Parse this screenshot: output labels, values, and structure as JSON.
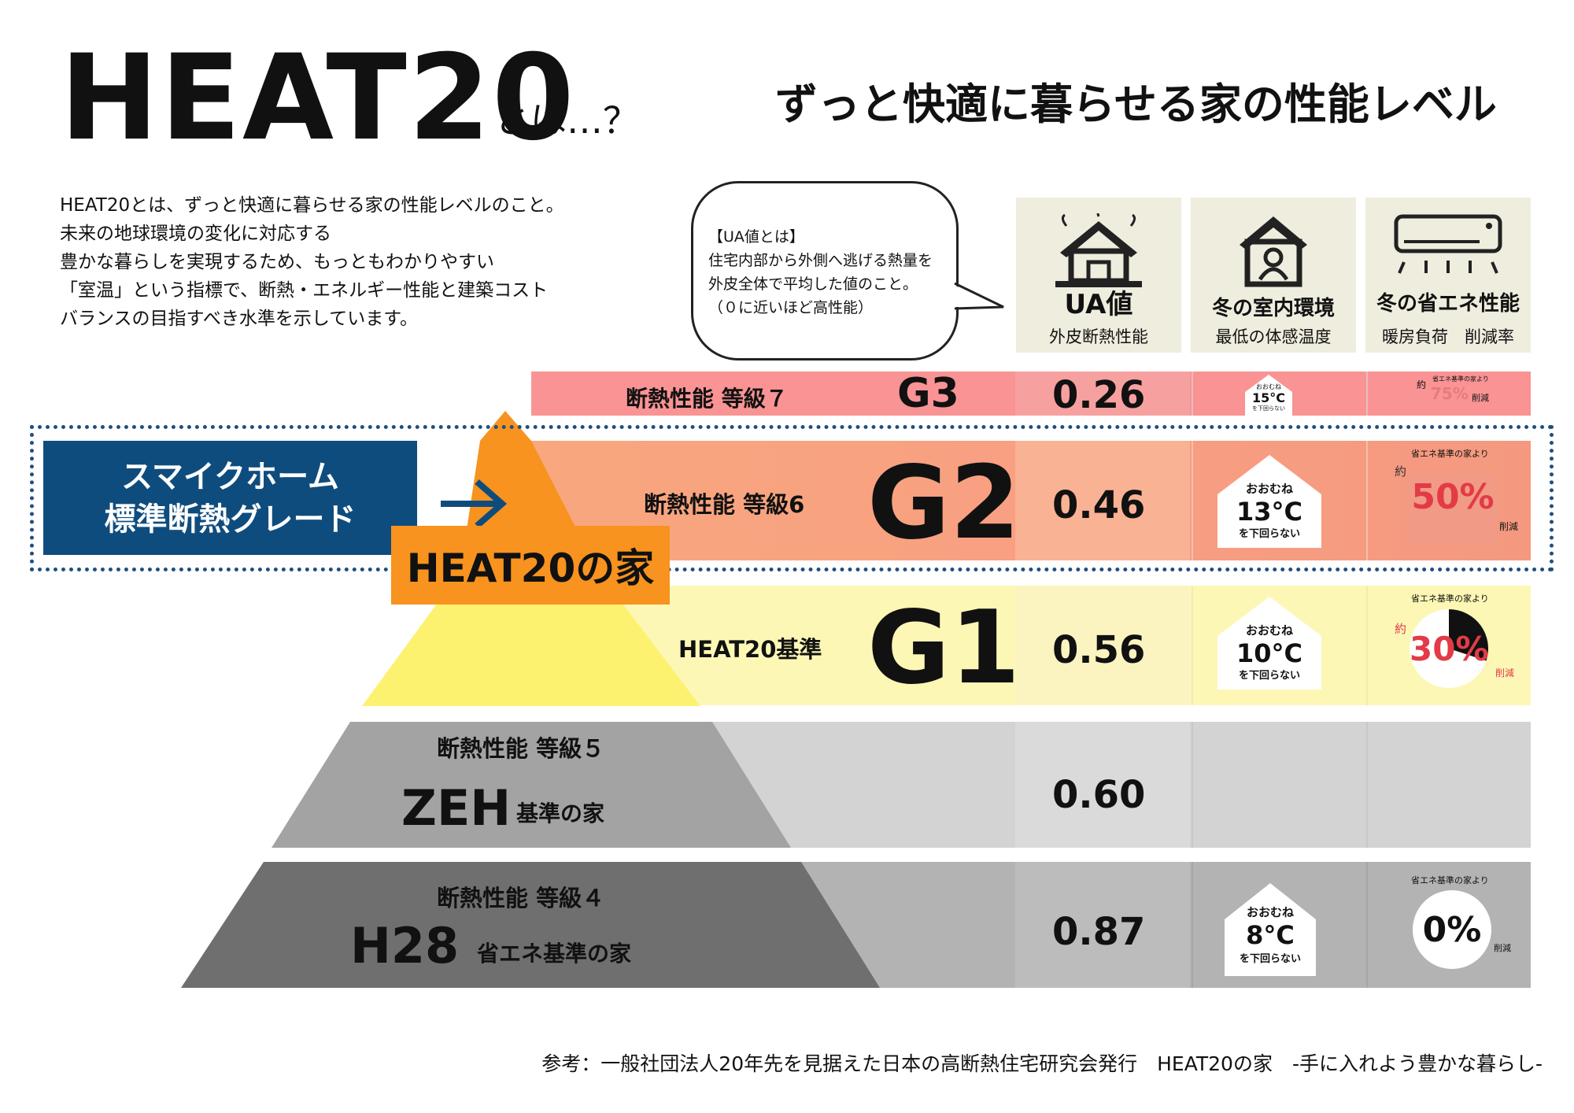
{
  "title": {
    "logo": "HEAT20",
    "logo_suffix": "とは…？",
    "headline": "ずっと快適に暮らせる家の性能レベル"
  },
  "intro": [
    "HEAT20とは、ずっと快適に暮らせる家の性能レベルのこと。",
    "未来の地球環境の変化に対応する",
    "豊かな暮らしを実現するため、もっともわかりやすい",
    "「室温」という指標で、断熱・エネルギー性能と建築コスト",
    "バランスの目指すべき水準を示しています。"
  ],
  "bubble": [
    "【UA値とは】",
    "住宅内部から外側へ逃げる熱量を",
    "外皮全体で平均した値のこと。",
    "（０に近いほど高性能）"
  ],
  "columns": [
    {
      "icon": "house-icon",
      "title": "UA値",
      "subtitle": "外皮断熱性能"
    },
    {
      "icon": "person-in-house-icon",
      "title": "冬の室内環境",
      "subtitle": "最低の体感温度"
    },
    {
      "icon": "air-conditioner-icon",
      "title": "冬の省エネ性能",
      "subtitle": "暖房負荷　削減率"
    }
  ],
  "standard_grade": {
    "line1": "スマイクホーム",
    "line2": "標準断熱グレード"
  },
  "heat20_house_label": "HEAT20の家",
  "house_label": {
    "top": "おおむね",
    "bottom": "を下回らない"
  },
  "savings_label": {
    "from": "省エネ基準の家より",
    "approx": "約",
    "reduce": "削減"
  },
  "rows": [
    {
      "label": "断熱性能 等級７",
      "grade": "G3",
      "ua": "0.26",
      "temp": "15°C",
      "pct": "75%",
      "pct_value": 0.75,
      "color": "#f99394"
    },
    {
      "label": "断熱性能 等級6",
      "grade": "G2",
      "ua": "0.46",
      "temp": "13°C",
      "pct": "50%",
      "pct_value": 0.5,
      "color": "#f8a77e"
    },
    {
      "label": "HEAT20基準",
      "grade": "G1",
      "ua": "0.56",
      "temp": "10°C",
      "pct": "30%",
      "pct_value": 0.3,
      "color": "#fdf7b6"
    },
    {
      "label_top": "断熱性能 等級５",
      "name": "ZEH",
      "name_suffix": "基準の家",
      "ua": "0.60",
      "color": "#d3d3d3"
    },
    {
      "label_top": "断熱性能 等級４",
      "name": "H28",
      "name_suffix": "省エネ基準の家",
      "ua": "0.87",
      "temp": "8°C",
      "pct": "0%",
      "pct_value": 0,
      "color": "#b3b3b3"
    }
  ],
  "reference": "参考：一般社団法人20年先を見据えた日本の高断熱住宅研究会発行　HEAT20の家　-手に入れよう豊かな暮らし-"
}
